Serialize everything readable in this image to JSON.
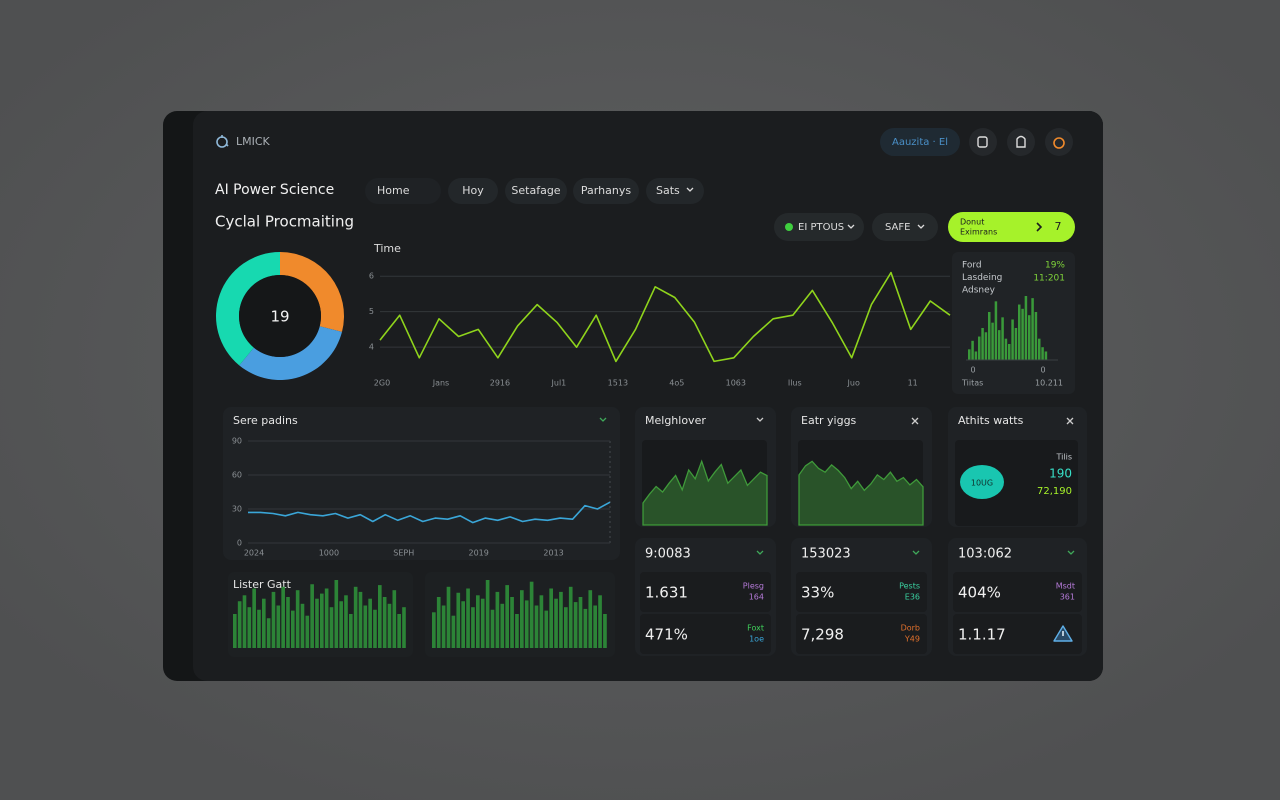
{
  "header": {
    "logo": "LMICK",
    "search": "Aauzita · El"
  },
  "title": "AI Power Science",
  "nav": [
    "Home",
    "Hoy",
    "Setafage",
    "Parhanys",
    "Sats"
  ],
  "subtitle": "Cyclal Procmaiting",
  "filters": [
    "EI PTOUS",
    "SAFE"
  ],
  "cta": {
    "lines": [
      "Donut",
      "Eximrans"
    ],
    "count": "7"
  },
  "donut": {
    "type": "pie",
    "center": "19",
    "values": [
      29,
      32,
      39
    ],
    "colors": [
      "#f08a2c",
      "#4a9ee0",
      "#17d9b0"
    ]
  },
  "time_chart": {
    "type": "line",
    "title": "Time",
    "categories": [
      "2G0",
      null,
      null,
      "Jans",
      null,
      null,
      "2916",
      null,
      null,
      "Jul1",
      null,
      null,
      "1513",
      null,
      null,
      "4o5",
      null,
      null,
      "1063",
      null,
      null,
      "Ilus",
      null,
      null,
      "Juo",
      null,
      null,
      "11",
      null,
      null
    ],
    "values": [
      4.2,
      4.9,
      3.7,
      4.8,
      4.3,
      4.5,
      3.7,
      4.6,
      5.2,
      4.7,
      4.0,
      4.9,
      3.6,
      4.5,
      5.7,
      5.4,
      4.7,
      3.6,
      3.7,
      4.3,
      4.8,
      4.9,
      5.6,
      4.7,
      3.7,
      5.2,
      6.1,
      4.5,
      5.3,
      4.9
    ],
    "ylim": [
      3.3,
      6.4
    ],
    "yticks": [
      6,
      5,
      4
    ],
    "color": "#8fd41c",
    "grid": true
  },
  "side_panel": {
    "type": "bar",
    "labels": [
      "Ford",
      "Lasdeing",
      "Adsney"
    ],
    "stats": [
      "19%",
      "11:201"
    ],
    "values": [
      10,
      18,
      8,
      22,
      30,
      26,
      45,
      35,
      55,
      28,
      40,
      20,
      15,
      38,
      30,
      52,
      48,
      60,
      42,
      58,
      45,
      20,
      12,
      8
    ],
    "color": "#3a9a3a",
    "axis": [
      "0",
      "0"
    ],
    "footer": [
      "Tiitas",
      "10.211"
    ]
  },
  "sere_chart": {
    "type": "line",
    "title": "Sere padins",
    "categories": [
      "2024",
      null,
      null,
      null,
      null,
      null,
      "1000",
      null,
      null,
      null,
      null,
      null,
      "SEPH",
      null,
      null,
      null,
      null,
      null,
      "2019",
      null,
      null,
      null,
      null,
      null,
      "2013",
      null,
      null,
      null,
      null,
      null
    ],
    "values": [
      27,
      27,
      26,
      24,
      27,
      25,
      24,
      26,
      22,
      25,
      19,
      25,
      20,
      24,
      19,
      22,
      21,
      24,
      18,
      22,
      20,
      23,
      19,
      21,
      20,
      22,
      21,
      33,
      30,
      36
    ],
    "ylim": [
      0,
      90
    ],
    "yticks": [
      0,
      30,
      60,
      90
    ],
    "color": "#3aa6d8",
    "grid": true
  },
  "lister": {
    "title": "Lister Gatt",
    "charts": [
      {
        "type": "bar",
        "color": "#2f8f3a",
        "values": [
          40,
          55,
          62,
          48,
          70,
          45,
          58,
          35,
          66,
          50,
          72,
          60,
          44,
          68,
          52,
          38,
          75,
          58,
          64,
          70,
          48,
          80,
          55,
          62,
          40,
          72,
          66,
          50,
          58,
          45,
          74,
          60,
          52,
          68,
          40,
          48
        ]
      },
      {
        "type": "bar",
        "color": "#2f8f3a",
        "values": [
          42,
          60,
          50,
          72,
          38,
          65,
          55,
          70,
          48,
          62,
          58,
          80,
          45,
          66,
          52,
          74,
          60,
          40,
          68,
          56,
          78,
          50,
          62,
          44,
          70,
          58,
          66,
          48,
          72,
          54,
          60,
          46,
          68,
          50,
          62,
          40
        ]
      }
    ]
  },
  "cards": [
    {
      "title": "Melghlover",
      "chart": {
        "type": "area",
        "color": "#3f9a3a",
        "values": [
          20,
          28,
          35,
          30,
          38,
          45,
          32,
          50,
          42,
          58,
          40,
          48,
          55,
          38,
          44,
          50,
          36,
          42,
          48,
          45
        ]
      }
    },
    {
      "title": "Eatr yiggs",
      "chart": {
        "type": "area",
        "color": "#3f9a3a",
        "values": [
          55,
          65,
          70,
          62,
          58,
          66,
          60,
          52,
          40,
          48,
          38,
          45,
          55,
          50,
          58,
          48,
          52,
          44,
          50,
          42
        ]
      }
    },
    {
      "title": "Athits watts",
      "badge": "10UG",
      "lines": [
        "Tilis",
        "190",
        "72,190"
      ]
    }
  ],
  "stat_cards": [
    {
      "headline": "9:0083",
      "rows": [
        {
          "value": "1.631",
          "tag": "Plesg",
          "sub": "164"
        },
        {
          "value": "471%",
          "tag": "Foxt",
          "sub": "1oe"
        }
      ]
    },
    {
      "headline": "153023",
      "rows": [
        {
          "value": "33%",
          "tag": "Pests",
          "sub": "E36"
        },
        {
          "value": "7,298",
          "tag": "Dorb",
          "sub": "Y49"
        }
      ]
    },
    {
      "headline": "103:062",
      "rows": [
        {
          "value": "404%",
          "tag": "Msdt",
          "sub": "361"
        },
        {
          "value": "1.1.17"
        }
      ]
    }
  ]
}
